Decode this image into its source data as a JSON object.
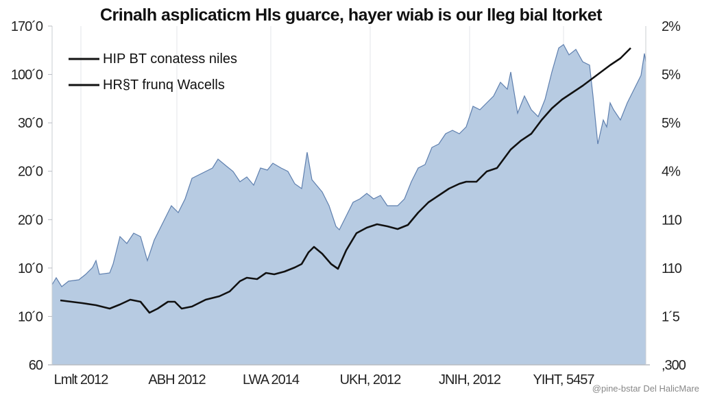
{
  "chart_data": {
    "type": "area",
    "title": "Crinalh asplicaticm Hls guarce, hayer wiab is our lleg bial ltorket",
    "xlabel": "",
    "ylabel": "",
    "xlim": [
      0,
      866
    ],
    "ylim": [
      0,
      494
    ],
    "grid": true,
    "legend_placement": "top-left",
    "left_tick_labels": [
      "60",
      "10´0",
      "10´0",
      "20´0",
      "20´0",
      "30´0",
      "100´0",
      "170´0"
    ],
    "right_tick_labels": [
      ",300",
      "1´5",
      "110",
      "110",
      "4%",
      "5%",
      "5%",
      "2%"
    ],
    "x_tick_labels": [
      "Lmlt 2012",
      "ABH 2012",
      "LWA 2014",
      "UKH, 2012",
      "JNIH, 2012",
      "YIHT, 5457"
    ],
    "x_tick_positions": [
      42,
      182,
      319,
      464,
      609,
      746
    ],
    "series": [
      {
        "name": "HIP BT conatess niles",
        "kind": "area",
        "color": "#b7cbe2",
        "stroke": "#5e7fae",
        "points": [
          [
            0,
            117
          ],
          [
            6,
            127
          ],
          [
            14,
            114
          ],
          [
            24,
            122
          ],
          [
            39,
            124
          ],
          [
            49,
            132
          ],
          [
            59,
            142
          ],
          [
            64,
            152
          ],
          [
            69,
            132
          ],
          [
            84,
            134
          ],
          [
            89,
            147
          ],
          [
            99,
            187
          ],
          [
            109,
            177
          ],
          [
            119,
            192
          ],
          [
            129,
            187
          ],
          [
            139,
            152
          ],
          [
            149,
            182
          ],
          [
            164,
            212
          ],
          [
            174,
            232
          ],
          [
            184,
            222
          ],
          [
            194,
            242
          ],
          [
            204,
            272
          ],
          [
            214,
            277
          ],
          [
            224,
            282
          ],
          [
            234,
            287
          ],
          [
            242,
            300
          ],
          [
            254,
            290
          ],
          [
            264,
            282
          ],
          [
            274,
            267
          ],
          [
            284,
            274
          ],
          [
            294,
            262
          ],
          [
            304,
            287
          ],
          [
            314,
            284
          ],
          [
            322,
            294
          ],
          [
            334,
            287
          ],
          [
            344,
            282
          ],
          [
            354,
            264
          ],
          [
            364,
            257
          ],
          [
            372,
            310
          ],
          [
            379,
            270
          ],
          [
            394,
            252
          ],
          [
            404,
            232
          ],
          [
            414,
            202
          ],
          [
            419,
            197
          ],
          [
            429,
            217
          ],
          [
            439,
            237
          ],
          [
            449,
            242
          ],
          [
            459,
            250
          ],
          [
            469,
            242
          ],
          [
            479,
            247
          ],
          [
            489,
            232
          ],
          [
            504,
            232
          ],
          [
            514,
            242
          ],
          [
            524,
            267
          ],
          [
            534,
            287
          ],
          [
            544,
            292
          ],
          [
            554,
            317
          ],
          [
            564,
            322
          ],
          [
            574,
            337
          ],
          [
            584,
            342
          ],
          [
            594,
            337
          ],
          [
            604,
            347
          ],
          [
            614,
            377
          ],
          [
            624,
            372
          ],
          [
            634,
            382
          ],
          [
            644,
            392
          ],
          [
            654,
            412
          ],
          [
            664,
            402
          ],
          [
            669,
            427
          ],
          [
            679,
            367
          ],
          [
            689,
            392
          ],
          [
            699,
            372
          ],
          [
            709,
            362
          ],
          [
            719,
            387
          ],
          [
            729,
            427
          ],
          [
            739,
            462
          ],
          [
            746,
            467
          ],
          [
            754,
            452
          ],
          [
            764,
            460
          ],
          [
            774,
            442
          ],
          [
            784,
            437
          ],
          [
            789,
            392
          ],
          [
            796,
            322
          ],
          [
            804,
            357
          ],
          [
            809,
            347
          ],
          [
            814,
            382
          ],
          [
            819,
            372
          ],
          [
            829,
            357
          ],
          [
            839,
            382
          ],
          [
            849,
            402
          ],
          [
            859,
            422
          ],
          [
            864,
            454
          ],
          [
            866,
            442
          ]
        ]
      },
      {
        "name": "HR§T frunq Wacells",
        "kind": "line",
        "color": "#111111",
        "points": [
          [
            12,
            94
          ],
          [
            44,
            90
          ],
          [
            64,
            87
          ],
          [
            84,
            82
          ],
          [
            99,
            88
          ],
          [
            114,
            95
          ],
          [
            129,
            92
          ],
          [
            142,
            76
          ],
          [
            154,
            82
          ],
          [
            169,
            92
          ],
          [
            179,
            92
          ],
          [
            189,
            82
          ],
          [
            204,
            85
          ],
          [
            224,
            95
          ],
          [
            244,
            100
          ],
          [
            259,
            107
          ],
          [
            274,
            122
          ],
          [
            284,
            127
          ],
          [
            299,
            125
          ],
          [
            312,
            134
          ],
          [
            324,
            132
          ],
          [
            339,
            136
          ],
          [
            354,
            142
          ],
          [
            364,
            147
          ],
          [
            374,
            164
          ],
          [
            382,
            172
          ],
          [
            394,
            162
          ],
          [
            407,
            147
          ],
          [
            417,
            140
          ],
          [
            429,
            167
          ],
          [
            444,
            192
          ],
          [
            459,
            200
          ],
          [
            474,
            205
          ],
          [
            489,
            202
          ],
          [
            504,
            198
          ],
          [
            519,
            204
          ],
          [
            534,
            222
          ],
          [
            549,
            237
          ],
          [
            564,
            247
          ],
          [
            579,
            257
          ],
          [
            594,
            264
          ],
          [
            604,
            267
          ],
          [
            619,
            267
          ],
          [
            634,
            282
          ],
          [
            649,
            287
          ],
          [
            669,
            314
          ],
          [
            684,
            327
          ],
          [
            699,
            337
          ],
          [
            714,
            357
          ],
          [
            729,
            374
          ],
          [
            744,
            387
          ],
          [
            759,
            397
          ],
          [
            774,
            407
          ],
          [
            794,
            422
          ],
          [
            814,
            437
          ],
          [
            829,
            447
          ],
          [
            844,
            462
          ]
        ]
      }
    ]
  },
  "watermark": "@pine-bstar Del HalicMare"
}
